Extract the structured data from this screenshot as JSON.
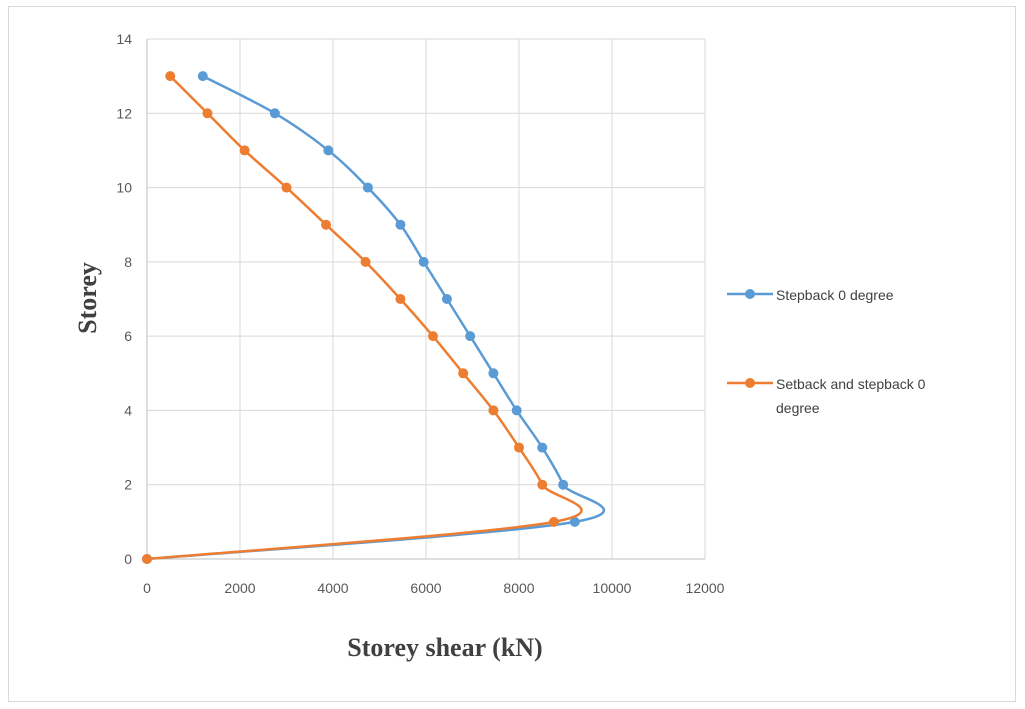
{
  "chart_data": {
    "type": "line",
    "xlabel": "Storey shear (kN)",
    "ylabel": "Storey",
    "xlim": [
      0,
      12000
    ],
    "ylim": [
      0,
      14
    ],
    "x_ticks": [
      0,
      2000,
      4000,
      6000,
      8000,
      10000,
      12000
    ],
    "y_ticks": [
      0,
      2,
      4,
      6,
      8,
      10,
      12,
      14
    ],
    "grid": true,
    "legend_position": "right",
    "series": [
      {
        "name": "Stepback 0 degree",
        "color": "#5b9bd5",
        "points": [
          [
            0,
            0
          ],
          [
            9200,
            1
          ],
          [
            8950,
            2
          ],
          [
            8500,
            3
          ],
          [
            7950,
            4
          ],
          [
            7450,
            5
          ],
          [
            6950,
            6
          ],
          [
            6450,
            7
          ],
          [
            5950,
            8
          ],
          [
            5450,
            9
          ],
          [
            4750,
            10
          ],
          [
            3900,
            11
          ],
          [
            2750,
            12
          ],
          [
            1200,
            13
          ]
        ]
      },
      {
        "name": "Setback and stepback 0 degree",
        "legend_lines": [
          "Setback and stepback 0",
          "degree"
        ],
        "color": "#ed7d31",
        "points": [
          [
            0,
            0
          ],
          [
            8750,
            1
          ],
          [
            8500,
            2
          ],
          [
            8000,
            3
          ],
          [
            7450,
            4
          ],
          [
            6800,
            5
          ],
          [
            6150,
            6
          ],
          [
            5450,
            7
          ],
          [
            4700,
            8
          ],
          [
            3850,
            9
          ],
          [
            3000,
            10
          ],
          [
            2100,
            11
          ],
          [
            1300,
            12
          ],
          [
            500,
            13
          ]
        ]
      }
    ]
  }
}
